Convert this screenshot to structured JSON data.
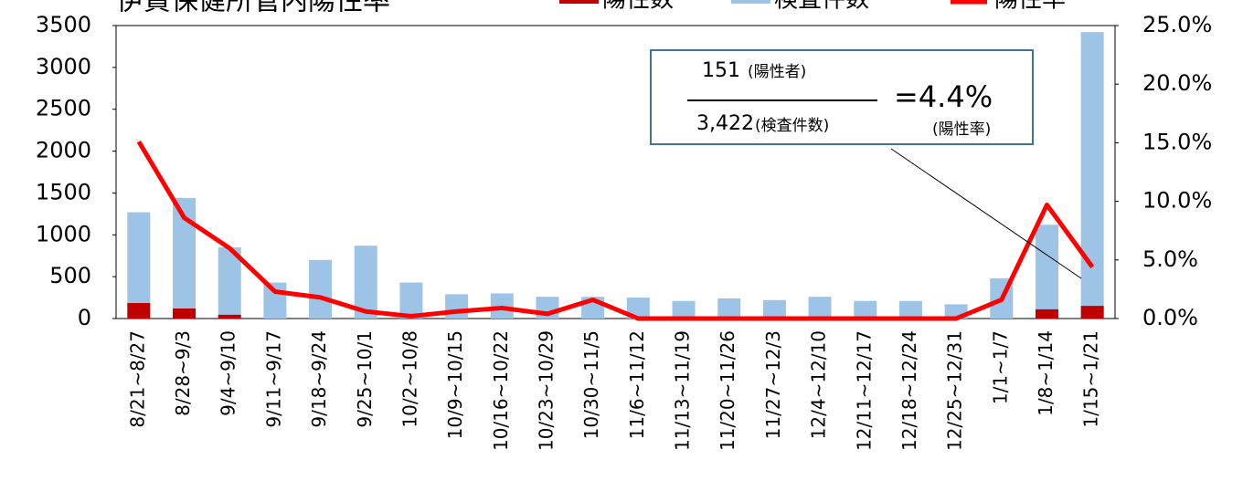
{
  "chart_data": {
    "type": "bar",
    "title": "伊賀保健所管内陽性率",
    "categories": [
      "8/21~8/27",
      "8/28~9/3",
      "9/4~9/10",
      "9/11~9/17",
      "9/18~9/24",
      "9/25~10/1",
      "10/2~10/8",
      "10/9~10/15",
      "10/16~10/22",
      "10/23~10/29",
      "10/30~11/5",
      "11/6~11/12",
      "11/13~11/19",
      "11/20~11/26",
      "11/27~12/3",
      "12/4~12/10",
      "12/11~12/17",
      "12/18~12/24",
      "12/25~12/31",
      "1/1~1/7",
      "1/8~1/14",
      "1/15~1/21"
    ],
    "series": [
      {
        "name": "陽性数",
        "color": "#c00000",
        "values": [
          185,
          120,
          45,
          0,
          0,
          0,
          0,
          0,
          0,
          0,
          0,
          0,
          0,
          0,
          0,
          0,
          0,
          0,
          0,
          0,
          110,
          151
        ]
      },
      {
        "name": "検査件数",
        "color": "#9dc3e6",
        "values": [
          1270,
          1440,
          850,
          430,
          700,
          870,
          430,
          290,
          300,
          260,
          260,
          250,
          210,
          240,
          220,
          260,
          210,
          210,
          170,
          480,
          1120,
          3422
        ]
      },
      {
        "name": "陽性率",
        "color": "#ff0000",
        "type": "line",
        "axis": "y2",
        "values": [
          15.1,
          8.6,
          6.0,
          2.3,
          1.8,
          0.6,
          0.2,
          0.6,
          0.9,
          0.4,
          1.6,
          0,
          0,
          0,
          0,
          0,
          0,
          0,
          0,
          1.6,
          9.7,
          4.4
        ]
      }
    ],
    "ylim": [
      0,
      3500
    ],
    "yticks": [
      0,
      500,
      1000,
      1500,
      2000,
      2500,
      3000,
      3500
    ],
    "y2lim": [
      0,
      25
    ],
    "y2ticks": [
      {
        "value": 0,
        "label": "0.0%"
      },
      {
        "value": 5,
        "label": "5.0%"
      },
      {
        "value": 10,
        "label": "10.0%"
      },
      {
        "value": 15,
        "label": "15.0%"
      },
      {
        "value": 20,
        "label": "20.0%"
      },
      {
        "value": 25,
        "label": "25.0%"
      }
    ],
    "annotation": {
      "numerator": "151",
      "numerator_note": "(陽性者)",
      "denominator": "3,422",
      "denominator_note": "(検査件数)",
      "result": "=4.4%",
      "result_note": "(陽性率)"
    }
  }
}
